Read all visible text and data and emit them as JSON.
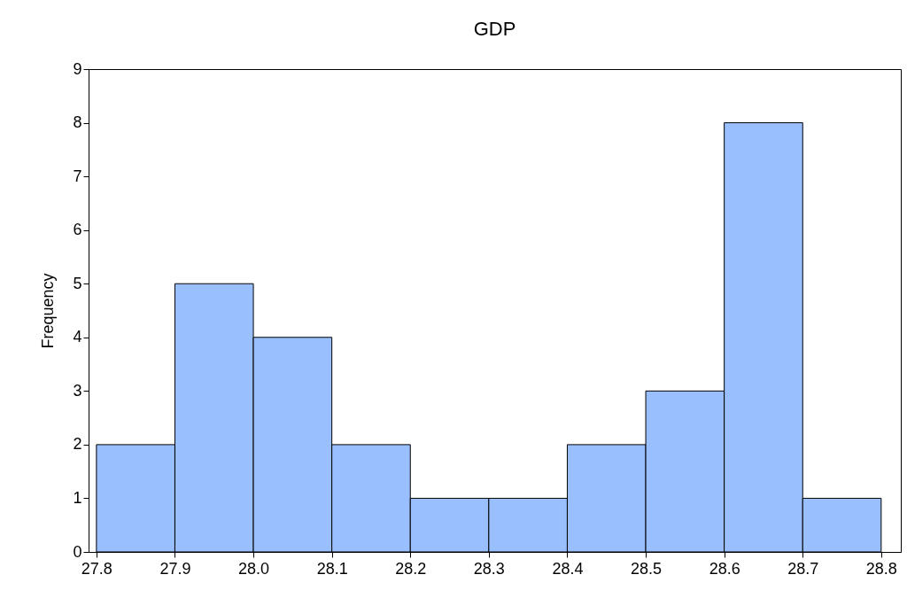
{
  "chart_data": {
    "type": "histogram",
    "title": "GDP",
    "ylabel": "Frequency",
    "bins": [
      27.8,
      27.9,
      28.0,
      28.1,
      28.2,
      28.3,
      28.4,
      28.5,
      28.6,
      28.7,
      28.8
    ],
    "values": [
      2,
      5,
      4,
      2,
      1,
      1,
      2,
      3,
      8,
      1
    ],
    "color": "#99bfff",
    "xlim": [
      27.79,
      28.825
    ],
    "xticks": [
      27.8,
      27.9,
      {
        "value": 28.0,
        "label": "28.0"
      },
      28.1,
      28.2,
      28.3,
      28.4,
      28.5,
      28.6,
      28.7,
      28.8
    ],
    "ylim": [
      0,
      9
    ],
    "yticks": [
      0,
      1,
      2,
      3,
      4,
      5,
      6,
      7,
      8,
      9
    ],
    "grid": false
  }
}
